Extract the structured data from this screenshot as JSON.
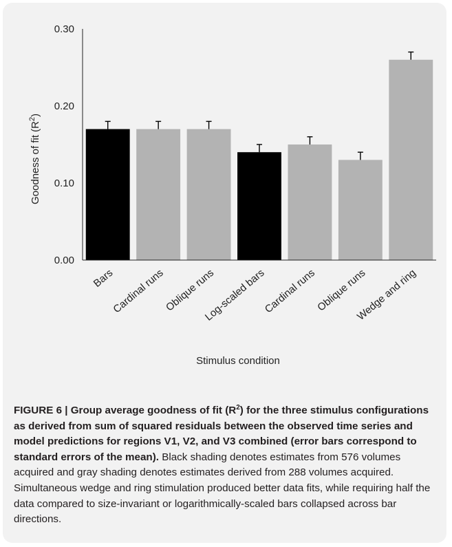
{
  "chart_data": {
    "type": "bar",
    "categories": [
      "Bars",
      "Cardinal runs",
      "Oblique runs",
      "Log-scaled bars",
      "Cardinal runs",
      "Oblique runs",
      "Wedge and ring"
    ],
    "values": [
      0.17,
      0.17,
      0.17,
      0.14,
      0.15,
      0.13,
      0.26
    ],
    "errors": [
      0.01,
      0.01,
      0.01,
      0.01,
      0.01,
      0.01,
      0.01
    ],
    "bar_colors": [
      "#000000",
      "#b3b3b3",
      "#b3b3b3",
      "#000000",
      "#b3b3b3",
      "#b3b3b3",
      "#b3b3b3"
    ],
    "ylim": [
      0,
      0.3
    ],
    "yticks": [
      "0.00",
      "0.10",
      "0.20",
      "0.30"
    ],
    "ytick_values": [
      0,
      0.1,
      0.2,
      0.3
    ],
    "ylabel": "Goodness of fit (R",
    "ylabel_sup": "2",
    "ylabel_close": ")",
    "xlabel": "Stimulus condition",
    "grid": false
  },
  "caption": {
    "lead_a": "FIGURE 6 | Group average goodness of fit (R",
    "lead_sup": "2",
    "lead_b": ") for the three stimulus configurations as derived from sum of squared residuals between the observed time series and model predictions for regions V1, V2, and V3 combined (error bars correspond to standard errors of the mean).",
    "body": " Black shading denotes estimates from 576 volumes acquired and gray shading denotes estimates derived from 288 volumes acquired. Simultaneous wedge and ring stimulation produced better data fits, while requiring half the data compared to size-invariant or logarithmically-scaled bars collapsed across bar directions."
  }
}
